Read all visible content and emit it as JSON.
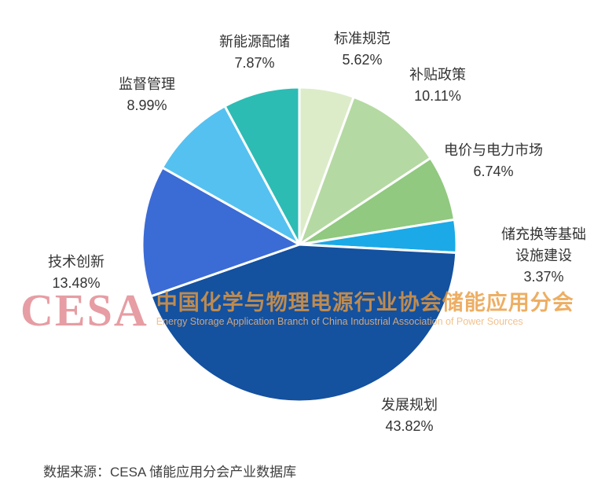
{
  "chart_data": {
    "type": "pie",
    "title": "",
    "direction": "clockwise",
    "start_angle_deg": 0,
    "legend_position": "none",
    "slices": [
      {
        "label": "标准规范",
        "value": 5.62,
        "pct": "5.62%",
        "color": "#dcecc9"
      },
      {
        "label": "补贴政策",
        "value": 10.11,
        "pct": "10.11%",
        "color": "#b5d9a2"
      },
      {
        "label": "电价与电力市场",
        "value": 6.74,
        "pct": "6.74%",
        "color": "#90c97f"
      },
      {
        "label": "储充换等基础设施建设",
        "value": 3.37,
        "pct": "3.37%",
        "color": "#1ba9e8"
      },
      {
        "label": "发展规划",
        "value": 43.82,
        "pct": "43.82%",
        "color": "#14519f"
      },
      {
        "label": "技术创新",
        "value": 13.48,
        "pct": "13.48%",
        "color": "#3b6bd5"
      },
      {
        "label": "监督管理",
        "value": 8.99,
        "pct": "8.99%",
        "color": "#55c1f0"
      },
      {
        "label": "新能源配储",
        "value": 7.87,
        "pct": "7.87%",
        "color": "#2cbcb4"
      }
    ]
  },
  "watermark": {
    "logo": "CESA",
    "title": "中国化学与物理电源行业协会储能应用分会",
    "subtitle": "Energy Storage Application Branch of China Industrial Association of Power Sources"
  },
  "source": "数据来源：CESA  储能应用分会产业数据库"
}
